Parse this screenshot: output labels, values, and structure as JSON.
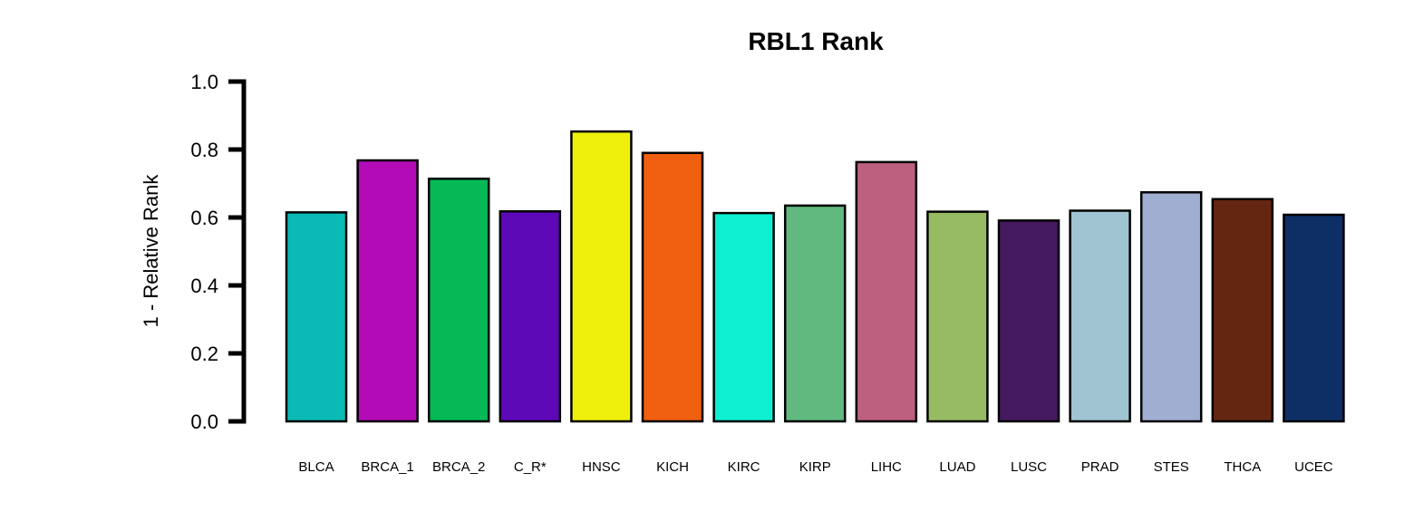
{
  "chart_data": {
    "type": "bar",
    "title": "RBL1 Rank",
    "xlabel": "",
    "ylabel": "1 - Relative Rank",
    "ylim": [
      0,
      1
    ],
    "yticks": [
      "0.0",
      "0.2",
      "0.4",
      "0.6",
      "0.8",
      "1.0"
    ],
    "categories": [
      "BLCA",
      "BRCA_1",
      "BRCA_2",
      "C_R*",
      "HNSC",
      "KICH",
      "KIRC",
      "KIRP",
      "LIHC",
      "LUAD",
      "LUSC",
      "PRAD",
      "STES",
      "THCA",
      "UCEC"
    ],
    "values": [
      0.615,
      0.768,
      0.714,
      0.618,
      0.853,
      0.79,
      0.613,
      0.635,
      0.763,
      0.617,
      0.591,
      0.62,
      0.674,
      0.654,
      0.608
    ],
    "colors": [
      "#0ABAB5",
      "#B30CB7",
      "#07B857",
      "#5E09B8",
      "#EEF00B",
      "#F06010",
      "#0DEFD0",
      "#61B97F",
      "#BD6080",
      "#97BB62",
      "#461A5E",
      "#A0C4D2",
      "#A0AED2",
      "#652611",
      "#0E2F66"
    ],
    "grid": false,
    "legend": "none"
  }
}
